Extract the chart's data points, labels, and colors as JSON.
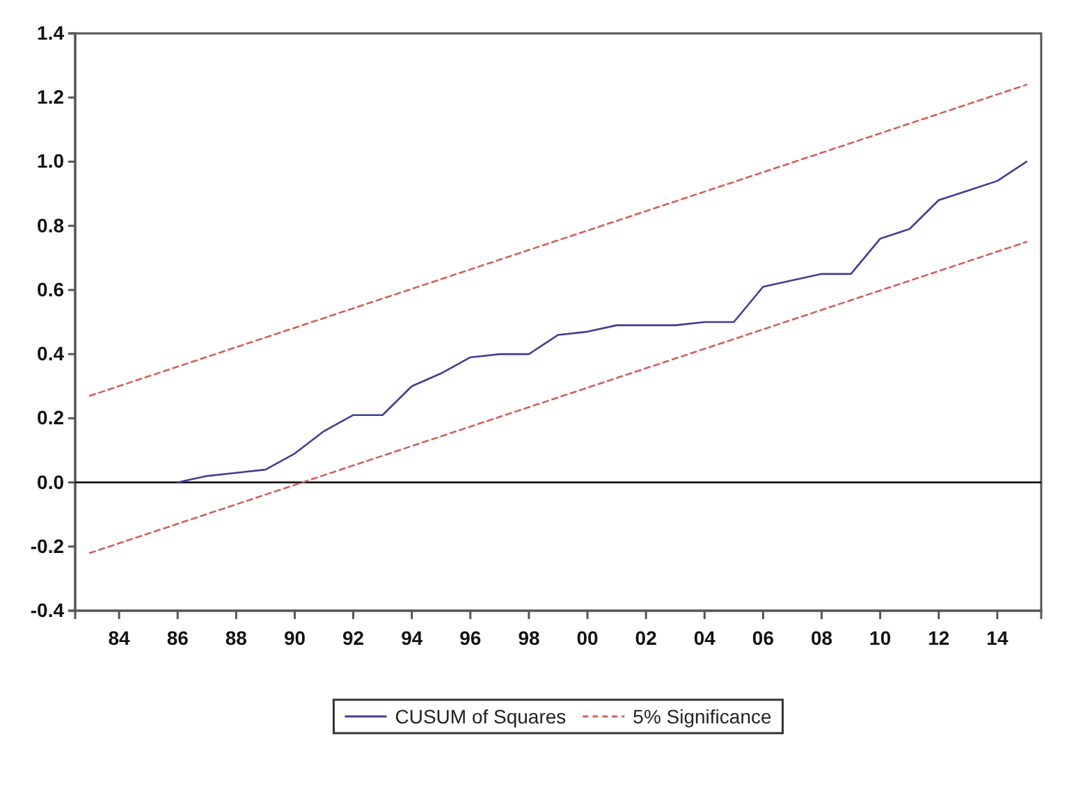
{
  "chart_data": {
    "type": "line",
    "series": [
      {
        "name": "CUSUM of Squares",
        "color": "#3f3f8f",
        "line_style": "solid",
        "x": [
          1986,
          1987,
          1988,
          1989,
          1990,
          1991,
          1992,
          1993,
          1994,
          1995,
          1996,
          1997,
          1998,
          1999,
          2000,
          2001,
          2002,
          2003,
          2004,
          2005,
          2006,
          2007,
          2008,
          2009,
          2010,
          2011,
          2012,
          2013,
          2014,
          2015
        ],
        "values": [
          0.0,
          0.02,
          0.03,
          0.04,
          0.09,
          0.16,
          0.21,
          0.21,
          0.3,
          0.34,
          0.39,
          0.4,
          0.4,
          0.46,
          0.47,
          0.49,
          0.49,
          0.49,
          0.5,
          0.5,
          0.61,
          0.63,
          0.65,
          0.65,
          0.76,
          0.79,
          0.88,
          0.91,
          0.94,
          1.0
        ]
      },
      {
        "name": "5% Significance",
        "color": "#d0605a",
        "line_style": "dashed",
        "x": [
          1983,
          2015
        ],
        "values": [
          0.27,
          1.24
        ]
      },
      {
        "color": "#d0605a",
        "line_style": "dashed",
        "x": [
          1983,
          2015
        ],
        "values": [
          -0.22,
          0.75
        ]
      }
    ],
    "xlim": [
      1982.5,
      2015.5
    ],
    "xticks": [
      {
        "value": 1984,
        "label": "84"
      },
      {
        "value": 1986,
        "label": "86"
      },
      {
        "value": 1988,
        "label": "88"
      },
      {
        "value": 1990,
        "label": "90"
      },
      {
        "value": 1992,
        "label": "92"
      },
      {
        "value": 1994,
        "label": "94"
      },
      {
        "value": 1996,
        "label": "96"
      },
      {
        "value": 1998,
        "label": "98"
      },
      {
        "value": 2000,
        "label": "00"
      },
      {
        "value": 2002,
        "label": "02"
      },
      {
        "value": 2004,
        "label": "04"
      },
      {
        "value": 2006,
        "label": "06"
      },
      {
        "value": 2008,
        "label": "08"
      },
      {
        "value": 2010,
        "label": "10"
      },
      {
        "value": 2012,
        "label": "12"
      },
      {
        "value": 2014,
        "label": "14"
      }
    ],
    "ylim": [
      -0.4,
      1.4
    ],
    "yticks": [
      {
        "value": -0.4,
        "label": "-0.4"
      },
      {
        "value": -0.2,
        "label": "-0.2"
      },
      {
        "value": 0,
        "label": "0.0"
      },
      {
        "value": 0.2,
        "label": "0.2"
      },
      {
        "value": 0.4,
        "label": "0.4"
      },
      {
        "value": 0.6,
        "label": "0.6"
      },
      {
        "value": 0.8,
        "label": "0.8"
      },
      {
        "value": 1.0,
        "label": "1.0"
      },
      {
        "value": 1.2,
        "label": "1.2"
      },
      {
        "value": 1.4,
        "label": "1.4"
      }
    ],
    "ref_lines": [
      {
        "axis": "y",
        "value": 0,
        "color": "#000000"
      }
    ],
    "grid": false,
    "legend": "bottom"
  }
}
